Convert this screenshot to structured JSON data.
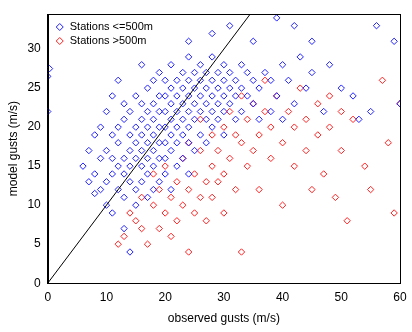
{
  "chart_data": {
    "type": "scatter",
    "x_label": "observed gusts (m/s)",
    "y_label": "model gusts (m/s)",
    "xlim": [
      0,
      60
    ],
    "xticks": [
      0,
      10,
      20,
      30,
      40,
      50,
      60
    ],
    "ylim": [
      0,
      34.5
    ],
    "yticks": [
      0,
      5,
      10,
      15,
      20,
      25,
      30
    ],
    "grid": false,
    "legend": "upper left",
    "marker": "diamond",
    "series": [
      {
        "name": "Stations <=500m",
        "color": "#2020ff",
        "x": [
          0,
          0,
          0.3,
          6,
          7,
          7,
          8,
          8,
          8,
          9,
          9,
          9,
          10,
          10,
          10,
          10,
          11,
          11,
          11,
          11,
          11,
          12,
          12,
          12,
          12,
          12,
          13,
          13,
          13,
          13,
          13,
          13,
          14,
          14,
          14,
          14,
          14,
          14,
          15,
          15,
          15,
          15,
          15,
          15,
          16,
          16,
          16,
          16,
          16,
          16,
          16,
          17,
          17,
          17,
          17,
          17,
          17,
          17,
          18,
          18,
          18,
          18,
          18,
          18,
          18,
          19,
          19,
          19,
          19,
          19,
          19,
          19,
          20,
          20,
          20,
          20,
          20,
          20,
          20,
          21,
          21,
          21,
          21,
          21,
          21,
          21,
          22,
          22,
          22,
          22,
          22,
          22,
          23,
          23,
          23,
          23,
          23,
          23,
          24,
          24,
          24,
          24,
          24,
          24,
          24,
          25,
          25,
          25,
          25,
          25,
          26,
          26,
          26,
          26,
          26,
          27,
          27,
          27,
          27,
          27,
          28,
          28,
          28,
          28,
          28,
          29,
          29,
          29,
          29,
          30,
          30,
          30,
          30,
          30,
          31,
          31,
          31,
          32,
          32,
          32,
          33,
          33,
          33,
          34,
          34,
          35,
          35,
          36,
          36,
          37,
          38,
          38,
          39,
          40,
          40,
          41,
          42,
          43,
          44,
          45,
          47,
          48,
          50,
          52,
          53,
          55,
          56,
          59,
          60,
          39,
          42,
          35,
          31,
          28,
          24,
          45
        ],
        "values": [
          22,
          26.5,
          27.5,
          15,
          13,
          17,
          11.5,
          14,
          19,
          12,
          16,
          20,
          10,
          13,
          17,
          22,
          9,
          14,
          16,
          19,
          24,
          12,
          15,
          18,
          20,
          26,
          7,
          11,
          14,
          16,
          21,
          23,
          4,
          13,
          15,
          17,
          19,
          22,
          10,
          12,
          16,
          18,
          20,
          24,
          13,
          15,
          17,
          19,
          21,
          23,
          28,
          11,
          14,
          16,
          18,
          20,
          22,
          25,
          12,
          15,
          17,
          19,
          21,
          23,
          26,
          13,
          16,
          18,
          20,
          22,
          24,
          27,
          14,
          16,
          18,
          20,
          22,
          24,
          26,
          12,
          17,
          19,
          21,
          23,
          25,
          28,
          15,
          18,
          20,
          22,
          24,
          26,
          16,
          19,
          21,
          23,
          25,
          27,
          14,
          18,
          20,
          22,
          24,
          26,
          29,
          17,
          21,
          23,
          25,
          27,
          19,
          22,
          24,
          26,
          28,
          18,
          21,
          23,
          25,
          27,
          20,
          22,
          24,
          26,
          29,
          21,
          23,
          25,
          27,
          19,
          22,
          24,
          26,
          28,
          23,
          25,
          27,
          21,
          24,
          26,
          22,
          25,
          28,
          24,
          27,
          23,
          26,
          21,
          25,
          27,
          22,
          26,
          24,
          28,
          21,
          26,
          23,
          29,
          25,
          27,
          22,
          28,
          25,
          24,
          21,
          22,
          33,
          31,
          23,
          34,
          33,
          31,
          33,
          32,
          31,
          31
        ]
      },
      {
        "name": "Stations >500m",
        "color": "#ff2020",
        "x": [
          12,
          13,
          14,
          15,
          16,
          16,
          17,
          18,
          18,
          19,
          19,
          20,
          20,
          21,
          21,
          22,
          22,
          23,
          23,
          24,
          24,
          24,
          25,
          25,
          26,
          26,
          26,
          27,
          27,
          28,
          28,
          28,
          29,
          29,
          30,
          30,
          30,
          31,
          31,
          32,
          32,
          33,
          33,
          33,
          34,
          34,
          35,
          35,
          36,
          36,
          37,
          37,
          38,
          38,
          39,
          40,
          40,
          41,
          42,
          42,
          43,
          44,
          44,
          45,
          46,
          46,
          47,
          48,
          48,
          49,
          50,
          50,
          51,
          52,
          54,
          55,
          57,
          58,
          60,
          59
        ],
        "values": [
          5,
          6,
          9,
          8,
          7,
          11,
          5,
          10,
          14,
          7,
          12,
          9,
          15,
          11,
          6,
          13,
          8,
          10,
          16,
          4,
          12,
          18,
          9,
          14,
          11,
          17,
          21,
          13,
          8,
          15,
          19,
          11,
          17,
          13,
          20,
          14,
          9,
          16,
          22,
          12,
          19,
          18,
          24,
          4,
          15,
          21,
          17,
          23,
          12,
          19,
          22,
          26,
          16,
          20,
          24,
          18,
          10,
          22,
          15,
          20,
          25,
          17,
          21,
          12,
          23,
          19,
          14,
          24,
          20,
          11,
          22,
          17,
          8,
          21,
          15,
          12,
          26,
          18,
          23,
          9
        ]
      },
      {
        "type": "line",
        "color": "#000000",
        "x": [
          0,
          34.5
        ],
        "values": [
          0,
          34.5
        ]
      }
    ]
  }
}
